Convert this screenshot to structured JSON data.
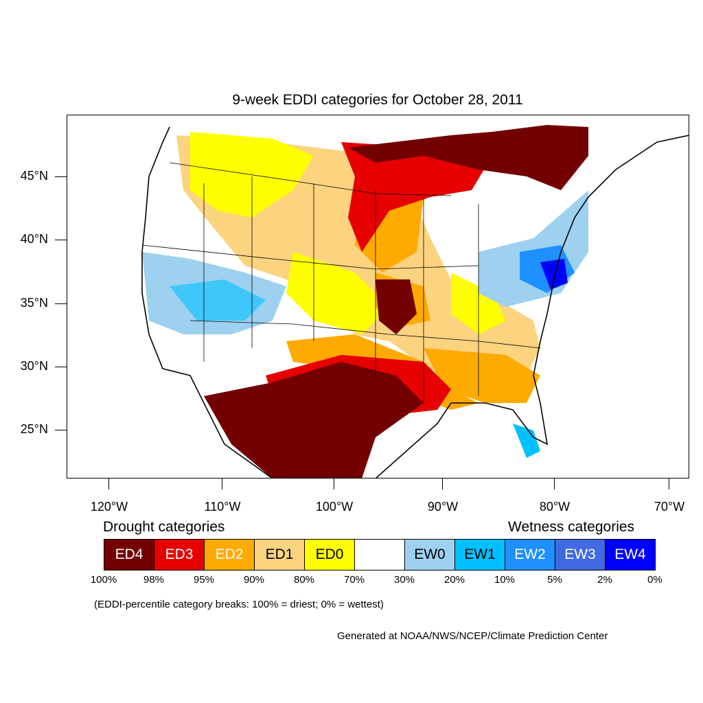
{
  "map": {
    "title": "9-week EDDI categories for October 28, 2011",
    "lat_ticks": [
      "45°N",
      "40°N",
      "35°N",
      "30°N",
      "25°N"
    ],
    "lon_ticks": [
      "120°W",
      "110°W",
      "100°W",
      "90°W",
      "80°W",
      "70°W"
    ]
  },
  "legend": {
    "drought_heading": "Drought categories",
    "wetness_heading": "Wetness categories",
    "categories": [
      {
        "label": "ED4",
        "color": "#730000",
        "text_color": "#ffffff"
      },
      {
        "label": "ED3",
        "color": "#e60000",
        "text_color": "#ffffff"
      },
      {
        "label": "ED2",
        "color": "#ffaa00",
        "text_color": "#ffffff"
      },
      {
        "label": "ED1",
        "color": "#fcd37f",
        "text_color": "#000000"
      },
      {
        "label": "ED0",
        "color": "#ffff00",
        "text_color": "#000000"
      },
      {
        "label": "",
        "color": "#ffffff",
        "text_color": "#000000"
      },
      {
        "label": "EW0",
        "color": "#9dd1ef",
        "text_color": "#000000"
      },
      {
        "label": "EW1",
        "color": "#00c0ff",
        "text_color": "#000000"
      },
      {
        "label": "EW2",
        "color": "#1e90ff",
        "text_color": "#ffffff"
      },
      {
        "label": "EW3",
        "color": "#4169e1",
        "text_color": "#ffffff"
      },
      {
        "label": "EW4",
        "color": "#0000ff",
        "text_color": "#ffffff"
      }
    ],
    "percentiles": [
      "100%",
      "98%",
      "95%",
      "90%",
      "80%",
      "70%",
      "30%",
      "20%",
      "10%",
      "5%",
      "2%",
      "0%"
    ],
    "note": "(EDDI-percentile category breaks: 100% = driest; 0% = wettest)"
  },
  "credit": "Generated at NOAA/NWS/NCEP/Climate Prediction Center"
}
